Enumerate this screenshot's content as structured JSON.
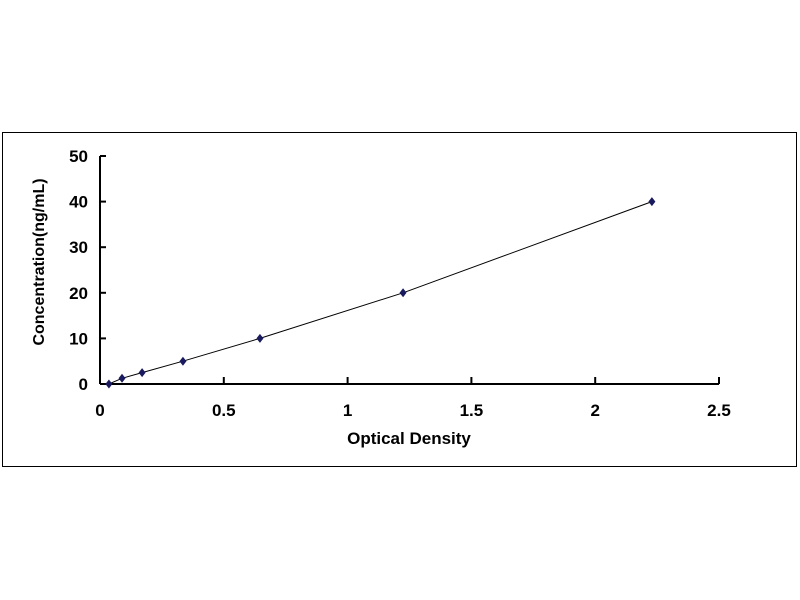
{
  "chart_data": {
    "type": "scatter",
    "title": "",
    "xlabel": "Optical Density",
    "ylabel": "Concentration(ng/mL)",
    "xlim": [
      0,
      2.5
    ],
    "ylim": [
      0,
      50
    ],
    "xticks": [
      "0",
      "0.5",
      "1",
      "1.5",
      "2",
      "2.5"
    ],
    "yticks": [
      "0",
      "10",
      "20",
      "30",
      "40",
      "50"
    ],
    "grid": false,
    "legend": "none",
    "marker_color": "#1a1a5e",
    "line_color": "#000000",
    "series": [
      {
        "x": [
          0.036,
          0.089,
          0.17,
          0.335,
          0.646,
          1.224,
          2.229
        ],
        "y": [
          0,
          1.25,
          2.5,
          5,
          10,
          20,
          40
        ]
      }
    ]
  }
}
